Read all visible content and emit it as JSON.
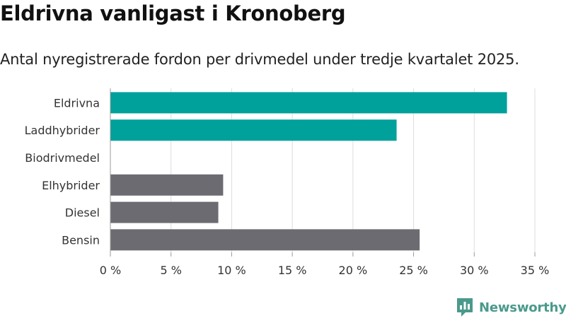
{
  "chart_data": {
    "type": "bar",
    "orientation": "horizontal",
    "title": "Eldrivna vanligast i Kronoberg",
    "subtitle": "Antal nyregistrerade fordon per drivmedel under tredje kvartalet 2025.",
    "categories": [
      "Eldrivna",
      "Laddhybrider",
      "Biodrivmedel",
      "Elhybrider",
      "Diesel",
      "Bensin"
    ],
    "values": [
      32.7,
      23.6,
      0,
      9.3,
      8.9,
      25.5
    ],
    "highlight": [
      true,
      true,
      false,
      false,
      false,
      false
    ],
    "x_ticks": [
      0,
      5,
      10,
      15,
      20,
      25,
      30,
      35
    ],
    "x_tick_labels": [
      "0 %",
      "5 %",
      "10 %",
      "15 %",
      "20 %",
      "25 %",
      "30 %",
      "35 %"
    ],
    "xlim": [
      0,
      35
    ],
    "xlabel": "",
    "ylabel": "",
    "grid": true,
    "colors": {
      "highlight": "#00a19a",
      "other": "#6d6b72",
      "grid": "#dddddd"
    }
  },
  "brand": {
    "name": "Newsworthy",
    "logo_icon": "newsworthy-logo-icon"
  }
}
